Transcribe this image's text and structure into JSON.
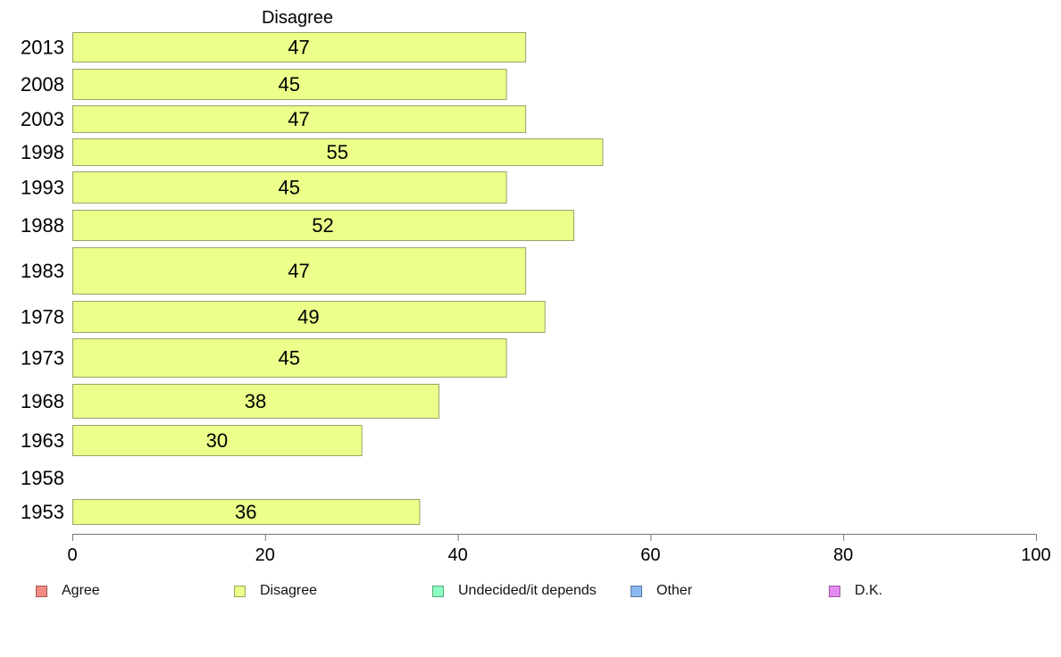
{
  "chart_data": {
    "type": "bar",
    "orientation": "horizontal",
    "title": "Disagree",
    "categories": [
      "2013",
      "2008",
      "2003",
      "1998",
      "1993",
      "1988",
      "1983",
      "1978",
      "1973",
      "1968",
      "1963",
      "1958",
      "1953"
    ],
    "series": [
      {
        "name": "Disagree",
        "values": [
          47,
          45,
          47,
          55,
          45,
          52,
          47,
          49,
          45,
          38,
          30,
          null,
          36
        ],
        "labels": [
          "47",
          "45",
          "47",
          "55",
          "45",
          "52",
          "47",
          "49",
          "45",
          "38",
          "30",
          "",
          "36"
        ],
        "color": "#ebff8a"
      }
    ],
    "xlim": [
      0,
      100
    ],
    "xticks": [
      "0",
      "20",
      "40",
      "60",
      "80",
      "100"
    ],
    "xlabel": "",
    "ylabel": "",
    "grid": false,
    "legend": {
      "placement": "bottom",
      "items": [
        {
          "label": "Agree",
          "color": "#f28b82"
        },
        {
          "label": "Disagree",
          "color": "#ebff8a"
        },
        {
          "label": "Undecided/it depends",
          "color": "#8affc1"
        },
        {
          "label": "Other",
          "color": "#8ab8f2"
        },
        {
          "label": "D.K.",
          "color": "#e58af2"
        }
      ]
    }
  }
}
